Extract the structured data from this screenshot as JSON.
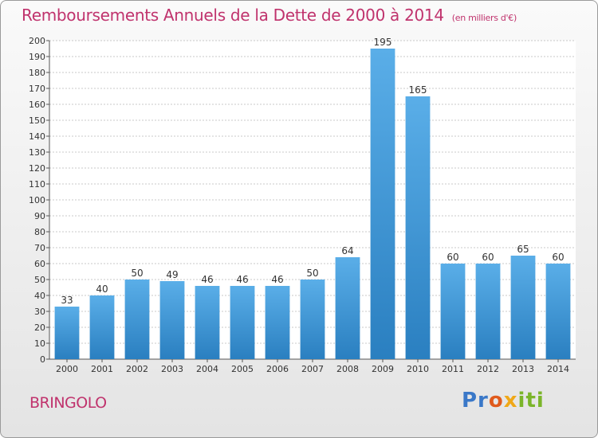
{
  "title": "Remboursements Annuels de la Dette de 2000 à 2014",
  "unit_label": "(en milliers d'€)",
  "commune": "BRINGOLO",
  "logo": {
    "p1": "Pr",
    "p2": "o",
    "p3": "x",
    "p4": "iti"
  },
  "colors": {
    "title": "#c0336d",
    "bar_top": "#5aaee8",
    "bar_bottom": "#2a7fc0"
  },
  "chart_data": {
    "type": "bar",
    "title": "Remboursements Annuels de la Dette de 2000 à 2014",
    "xlabel": "",
    "ylabel": "(en milliers d'€)",
    "ylim": [
      0,
      200
    ],
    "ytick_step": 10,
    "grid": true,
    "categories": [
      "2000",
      "2001",
      "2002",
      "2003",
      "2004",
      "2005",
      "2006",
      "2007",
      "2008",
      "2009",
      "2010",
      "2011",
      "2012",
      "2013",
      "2014"
    ],
    "values": [
      33,
      40,
      50,
      49,
      46,
      46,
      46,
      50,
      64,
      195,
      165,
      60,
      60,
      65,
      60
    ]
  }
}
